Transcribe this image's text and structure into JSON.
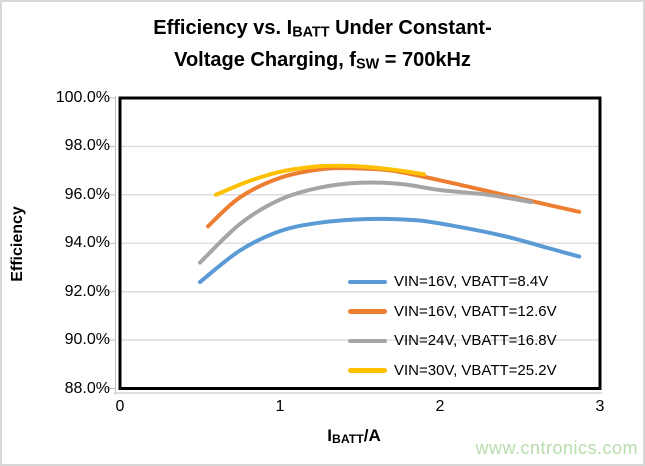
{
  "watermark": {
    "text": "www.cntronics.com",
    "color": "#B7DDAB"
  },
  "chart_data": {
    "type": "line",
    "title": {
      "line1_pre": "Efficiency vs. I",
      "line1_sub": "BATT",
      "line1_post": " Under Constant-",
      "line2_pre": "Voltage Charging, f",
      "line2_sub": "SW",
      "line2_post": " = 700kHz"
    },
    "x_axis": {
      "title_pre": "I",
      "title_sub": "BATT",
      "title_post": "/A",
      "ticks": [
        {
          "label": "0",
          "value": 0
        },
        {
          "label": "1",
          "value": 1
        },
        {
          "label": "2",
          "value": 2
        },
        {
          "label": "3",
          "value": 3
        }
      ]
    },
    "y_axis": {
      "title": "Efficiency",
      "ticks": [
        {
          "label": "100.0%",
          "value": 100
        },
        {
          "label": "98.0%",
          "value": 98
        },
        {
          "label": "96.0%",
          "value": 96
        },
        {
          "label": "94.0%",
          "value": 94
        },
        {
          "label": "92.0%",
          "value": 92
        },
        {
          "label": "90.0%",
          "value": 90
        },
        {
          "label": "88.0%",
          "value": 88
        }
      ]
    },
    "xlim": [
      0,
      3
    ],
    "ylim": [
      88,
      100
    ],
    "grid": "horizontal",
    "gridline_color": "#D9D9D9",
    "legend_position": "inside-bottom-right",
    "series": [
      {
        "name": "VIN=16V, VBATT=8.4V",
        "color": "#5B9BD5",
        "points": [
          [
            0.5,
            92.4
          ],
          [
            0.75,
            93.7
          ],
          [
            1.0,
            94.5
          ],
          [
            1.25,
            94.85
          ],
          [
            1.55,
            95.0
          ],
          [
            1.85,
            94.95
          ],
          [
            2.1,
            94.7
          ],
          [
            2.4,
            94.3
          ],
          [
            2.65,
            93.85
          ],
          [
            2.87,
            93.45
          ]
        ]
      },
      {
        "name": "VIN=16V, VBATT=12.6V",
        "color": "#ED7D31",
        "points": [
          [
            0.55,
            94.7
          ],
          [
            0.75,
            95.9
          ],
          [
            1.0,
            96.7
          ],
          [
            1.25,
            97.05
          ],
          [
            1.45,
            97.1
          ],
          [
            1.7,
            97.0
          ],
          [
            2.0,
            96.6
          ],
          [
            2.3,
            96.15
          ],
          [
            2.6,
            95.7
          ],
          [
            2.87,
            95.3
          ]
        ]
      },
      {
        "name": "VIN=24V, VBATT=16.8V",
        "color": "#A5A5A5",
        "points": [
          [
            0.5,
            93.2
          ],
          [
            0.75,
            94.8
          ],
          [
            1.0,
            95.8
          ],
          [
            1.25,
            96.3
          ],
          [
            1.5,
            96.5
          ],
          [
            1.75,
            96.45
          ],
          [
            2.0,
            96.2
          ],
          [
            2.3,
            96.0
          ],
          [
            2.57,
            95.7
          ]
        ]
      },
      {
        "name": "VIN=30V, VBATT=25.2V",
        "color": "#FFC000",
        "points": [
          [
            0.6,
            96.0
          ],
          [
            0.8,
            96.55
          ],
          [
            1.0,
            96.95
          ],
          [
            1.2,
            97.15
          ],
          [
            1.35,
            97.2
          ],
          [
            1.55,
            97.15
          ],
          [
            1.75,
            97.0
          ],
          [
            1.9,
            96.85
          ]
        ]
      }
    ]
  }
}
